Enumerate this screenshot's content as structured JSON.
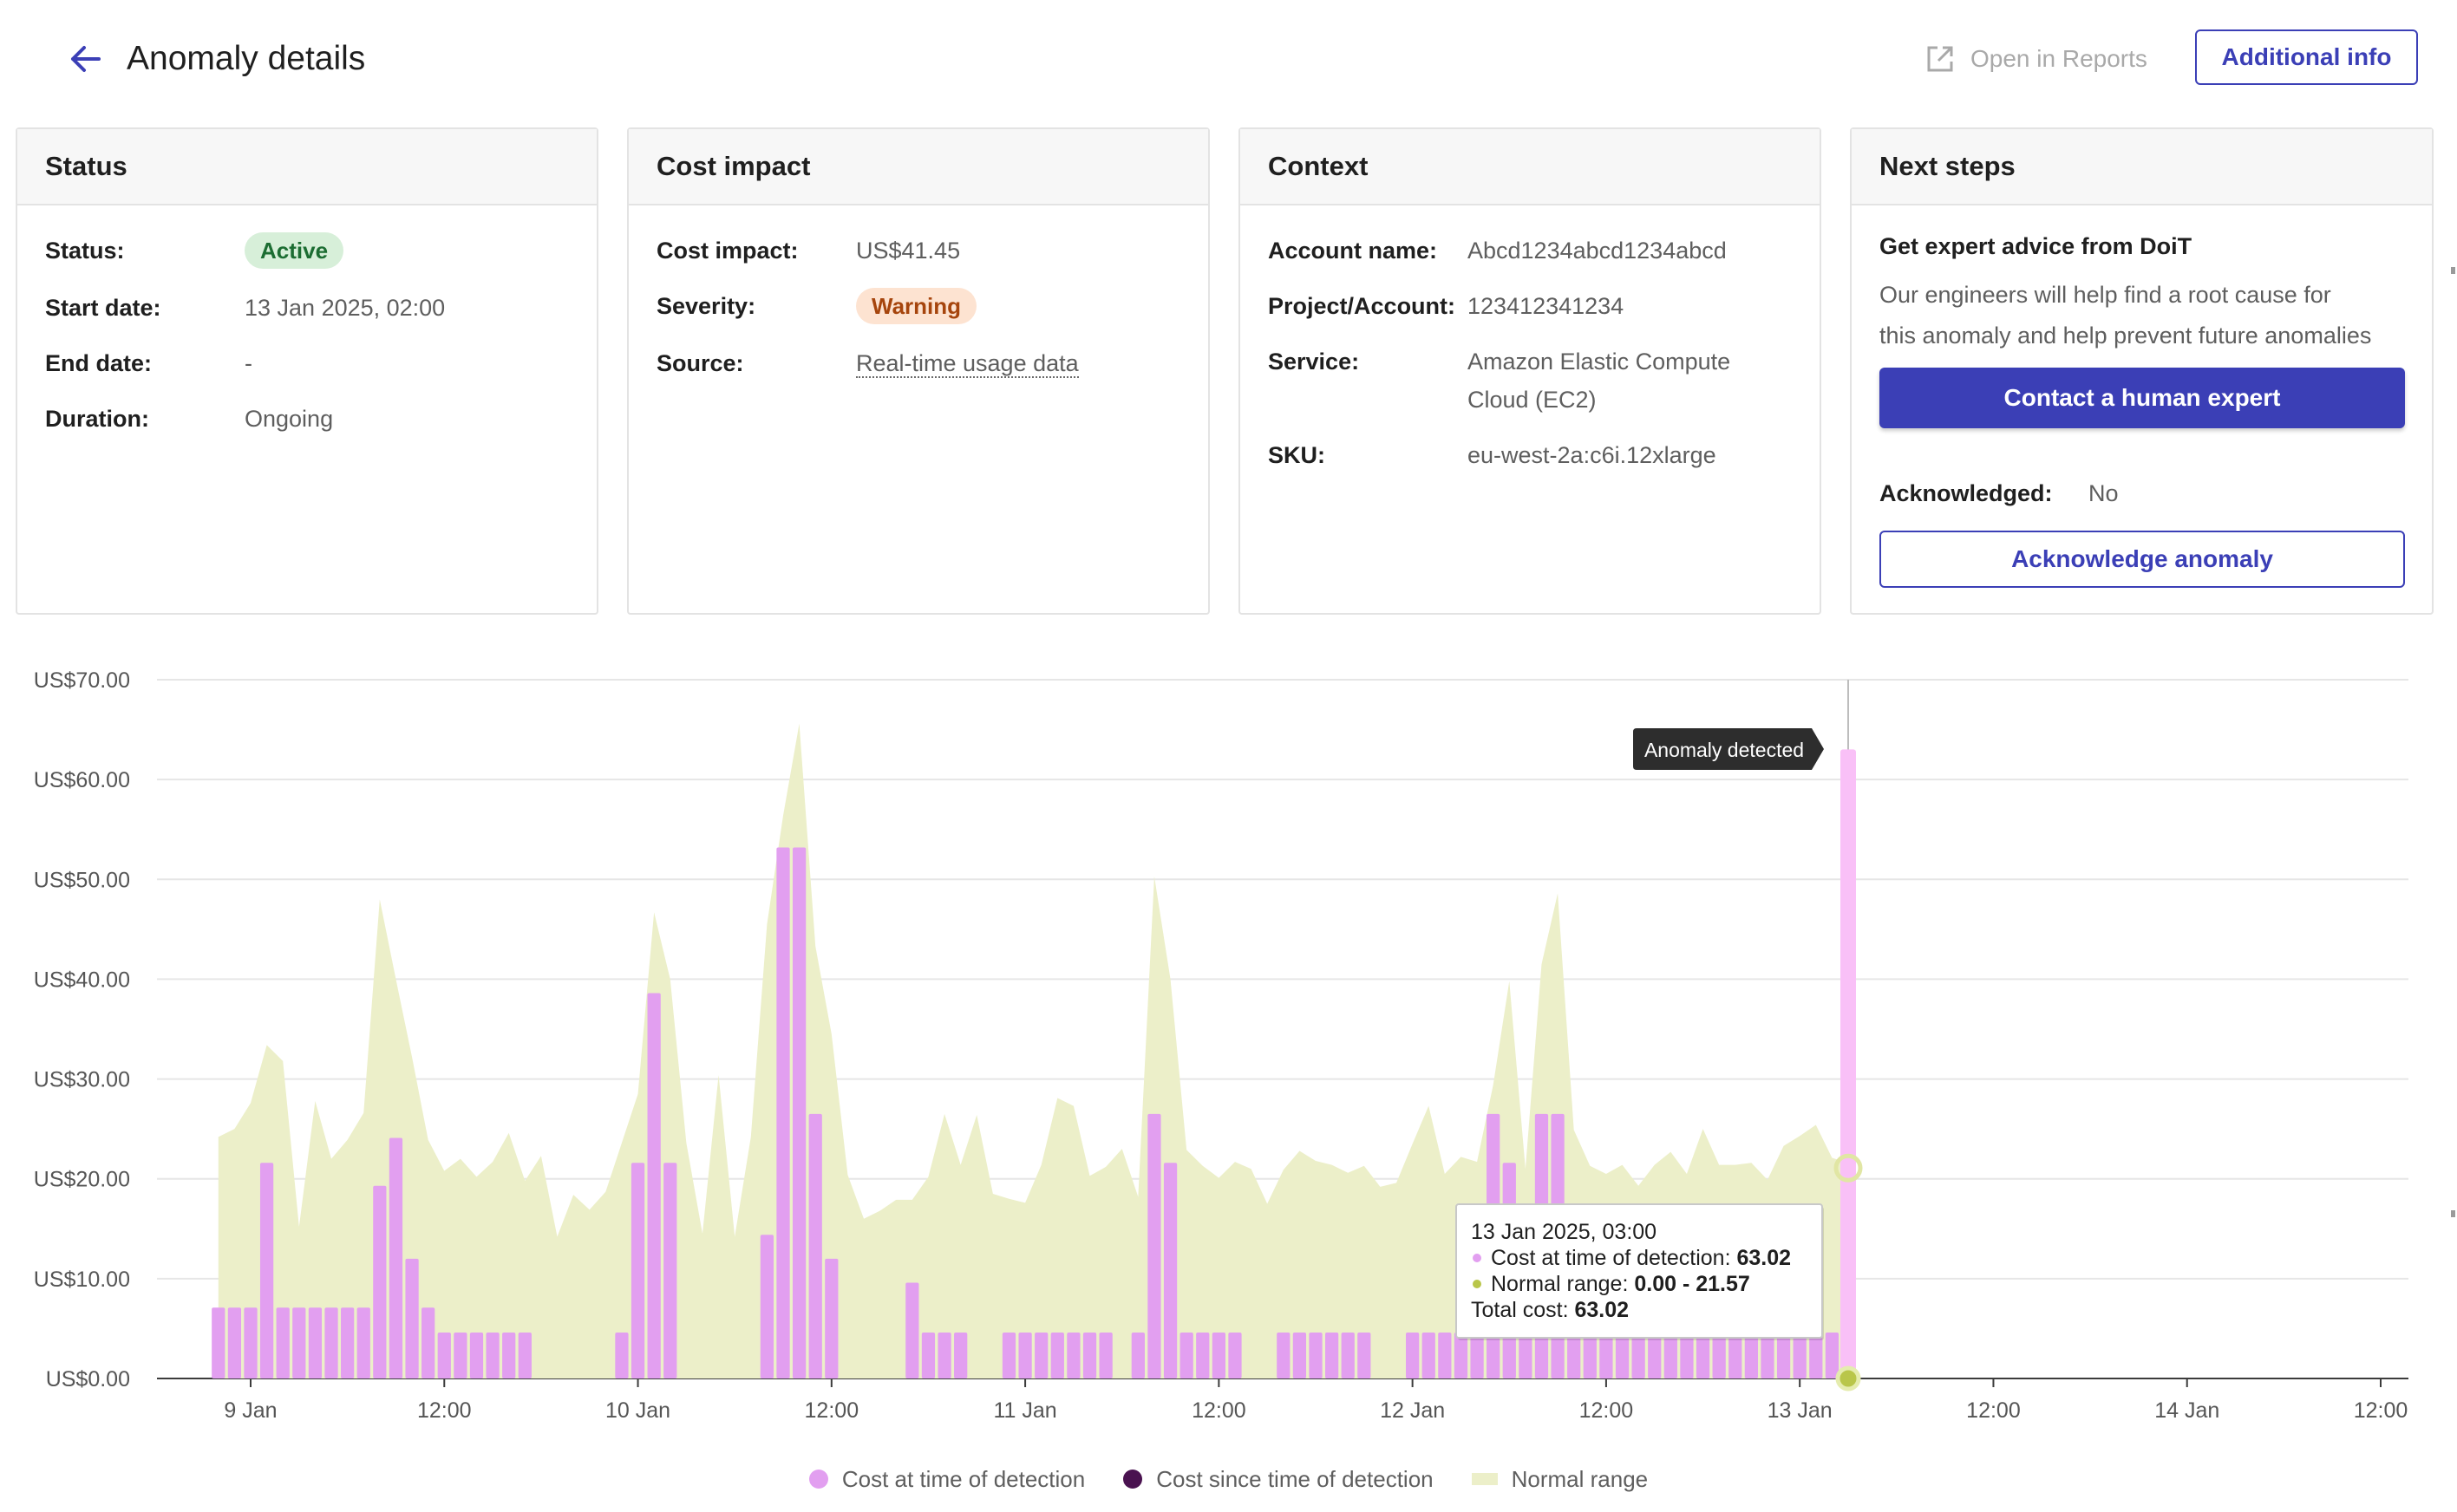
{
  "header": {
    "title": "Anomaly details",
    "open_in_reports": "Open in Reports",
    "additional_info": "Additional info"
  },
  "status_card": {
    "title": "Status",
    "status_label": "Status:",
    "status_value": "Active",
    "start_label": "Start date:",
    "start_value": "13 Jan 2025, 02:00",
    "end_label": "End date:",
    "end_value": "-",
    "duration_label": "Duration:",
    "duration_value": "Ongoing"
  },
  "cost_card": {
    "title": "Cost impact",
    "impact_label": "Cost impact:",
    "impact_value": "US$41.45",
    "severity_label": "Severity:",
    "severity_value": "Warning",
    "source_label": "Source:",
    "source_value": "Real-time usage data"
  },
  "context_card": {
    "title": "Context",
    "account_label": "Account name:",
    "account_value": "Abcd1234abcd1234abcd",
    "project_label": "Project/Account:",
    "project_value": "123412341234",
    "service_label": "Service:",
    "service_value_line1": "Amazon Elastic Compute",
    "service_value_line2": "Cloud (EC2)",
    "sku_label": "SKU:",
    "sku_value": "eu-west-2a:c6i.12xlarge"
  },
  "next_steps_card": {
    "title": "Next steps",
    "advice_title": "Get expert advice from DoiT",
    "advice_line1": "Our engineers will help find a root cause for",
    "advice_line2": "this anomaly and help prevent future anomalies",
    "contact_button": "Contact a human expert",
    "ack_label": "Acknowledged:",
    "ack_value": "No",
    "ack_button": "Acknowledge anomaly"
  },
  "colors": {
    "accent": "#3b3fb6",
    "cost_bar": "#e29ff0",
    "anomaly_bar": "#f9c0f7",
    "since_detection": "#4a1250",
    "normal_range": "#ecefc9"
  },
  "chart_data": {
    "type": "bar",
    "x_unit": "hour",
    "x_start": "8 Jan 2025, 22:00",
    "y_ticks": [
      "US$0.00",
      "US$10.00",
      "US$20.00",
      "US$30.00",
      "US$40.00",
      "US$50.00",
      "US$60.00",
      "US$70.00"
    ],
    "ylim": [
      0,
      70
    ],
    "x_ticks": [
      {
        "hour": 2,
        "label": "9 Jan"
      },
      {
        "hour": 14,
        "label": "12:00"
      },
      {
        "hour": 26,
        "label": "10 Jan"
      },
      {
        "hour": 38,
        "label": "12:00"
      },
      {
        "hour": 50,
        "label": "11 Jan"
      },
      {
        "hour": 62,
        "label": "12:00"
      },
      {
        "hour": 74,
        "label": "12 Jan"
      },
      {
        "hour": 86,
        "label": "12:00"
      },
      {
        "hour": 98,
        "label": "13 Jan"
      },
      {
        "hour": 110,
        "label": "12:00"
      },
      {
        "hour": 122,
        "label": "14 Jan"
      },
      {
        "hour": 134,
        "label": "12:00"
      }
    ],
    "x_max_hour": 136,
    "series": [
      {
        "name": "Cost at time of detection",
        "values": [
          7.1,
          7.1,
          7.1,
          21.6,
          7.1,
          7.1,
          7.1,
          7.1,
          7.1,
          7.1,
          19.3,
          24.1,
          12.0,
          7.1,
          4.6,
          4.6,
          4.6,
          4.6,
          4.6,
          4.6,
          0,
          0,
          0,
          0,
          0,
          4.6,
          21.6,
          38.6,
          21.6,
          0,
          0,
          0,
          0,
          0,
          14.4,
          53.2,
          53.2,
          26.5,
          12.0,
          0,
          0,
          0,
          0,
          9.6,
          4.6,
          4.6,
          4.6,
          0,
          0,
          4.6,
          4.6,
          4.6,
          4.6,
          4.6,
          4.6,
          4.6,
          0,
          4.6,
          26.5,
          21.6,
          4.6,
          4.6,
          4.6,
          4.6,
          0,
          0,
          4.6,
          4.6,
          4.6,
          4.6,
          4.6,
          4.6,
          0,
          0,
          4.6,
          4.6,
          4.6,
          4.6,
          4.6,
          26.5,
          21.6,
          4.6,
          26.5,
          26.5,
          4.6,
          4.6,
          4.6,
          4.6,
          4.6,
          4.6,
          4.6,
          4.6,
          4.6,
          4.6,
          4.6,
          4.6,
          4.6,
          4.6,
          4.6,
          4.6,
          4.6
        ]
      },
      {
        "name": "Cost since time of detection",
        "values": []
      },
      {
        "name": "Normal range",
        "values": [
          24.2,
          25.0,
          27.6,
          33.4,
          31.8,
          15.2,
          27.8,
          22.0,
          23.9,
          26.6,
          48.0,
          40.0,
          32.2,
          23.9,
          20.8,
          22.0,
          20.2,
          21.7,
          24.6,
          19.8,
          22.3,
          14.2,
          18.4,
          16.9,
          18.7,
          23.6,
          28.5,
          46.7,
          40.0,
          23.6,
          14.5,
          30.4,
          14.2,
          24.2,
          45.5,
          56.4,
          65.6,
          43.3,
          34.5,
          20.4,
          16.0,
          16.8,
          17.9,
          17.9,
          20.2,
          26.5,
          21.4,
          26.4,
          18.5,
          18.0,
          17.6,
          21.4,
          28.1,
          27.3,
          20.3,
          21.2,
          23.0,
          18.2,
          50.3,
          40.0,
          22.9,
          21.3,
          20.1,
          21.7,
          21.0,
          17.5,
          20.9,
          22.8,
          21.8,
          21.4,
          20.6,
          21.3,
          19.2,
          19.6,
          23.5,
          27.3,
          20.5,
          22.2,
          21.7,
          29.4,
          39.8,
          21.0,
          41.5,
          48.6,
          24.9,
          21.3,
          20.5,
          21.4,
          19.3,
          21.4,
          22.7,
          20.5,
          25.0,
          21.4,
          21.4,
          21.6,
          19.9,
          23.3,
          24.3,
          25.4,
          22.1,
          21.6
        ]
      }
    ],
    "anomaly_bar": {
      "hour": 101,
      "value": 63.02
    },
    "annotation": "Anomaly detected",
    "tooltip": {
      "title": "13 Jan 2025, 03:00",
      "cost_label": "Cost at time of detection:",
      "cost_value": "63.02",
      "range_label": "Normal range:",
      "range_value": "0.00 - 21.57",
      "total_label": "Total cost:",
      "total_value": "63.02"
    },
    "grid": true,
    "legend_position": "bottom-center"
  }
}
